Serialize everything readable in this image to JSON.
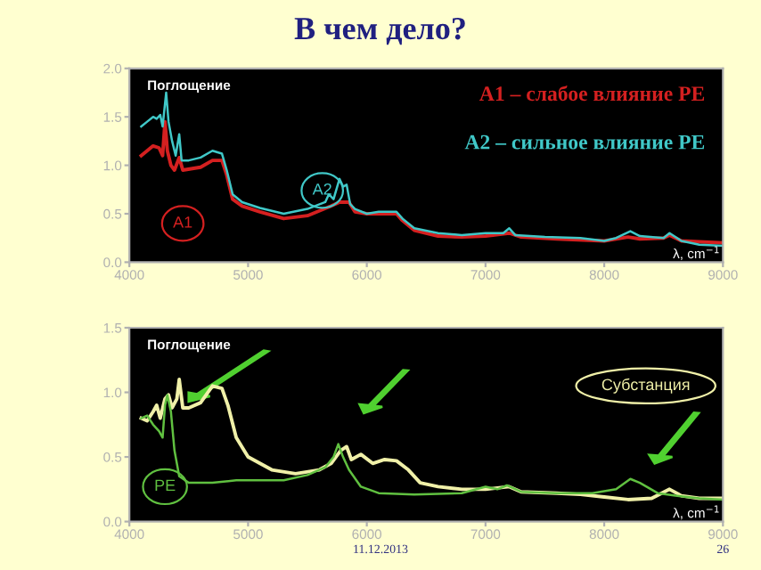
{
  "chart_data": [
    {
      "type": "line",
      "title": "В чем дело?",
      "ylabel": "Поглощение",
      "xlim": [
        4000,
        9000
      ],
      "xticks": [
        4000,
        5000,
        6000,
        7000,
        8000,
        9000
      ],
      "ylim": [
        0,
        2
      ],
      "yticks": [
        {
          "value": 0,
          "label": "0.0"
        },
        {
          "value": 0.5,
          "label": "0.5"
        },
        {
          "value": 1,
          "label": "1.0"
        },
        {
          "value": 1.5,
          "label": "1.5"
        },
        {
          "value": 2,
          "label": "2.0"
        }
      ],
      "xlabel": "λ, cm$^{−1}$",
      "grid": false,
      "legend": false,
      "marker": "none",
      "line_style": "solid",
      "annotations": [
        "A1 – слабое влияние PE",
        "A2 – сильное влияние PE"
      ],
      "series": [
        {
          "name": "A1",
          "color": "#d42020",
          "x": [
            4100,
            4150,
            4200,
            4250,
            4280,
            4300,
            4320,
            4350,
            4380,
            4420,
            4450,
            4600,
            4700,
            4780,
            4820,
            4870,
            4950,
            5100,
            5300,
            5500,
            5700,
            5770,
            5850,
            5900,
            6000,
            6100,
            6250,
            6300,
            6400,
            6600,
            6800,
            7000,
            7200,
            7300,
            7600,
            8000,
            8200,
            8300,
            8500,
            8550,
            8650,
            8800,
            9000
          ],
          "values": [
            1.1,
            1.15,
            1.2,
            1.18,
            1.1,
            1.45,
            1.15,
            1.0,
            0.95,
            1.08,
            0.95,
            0.98,
            1.05,
            1.05,
            0.9,
            0.65,
            0.58,
            0.52,
            0.45,
            0.48,
            0.58,
            0.62,
            0.62,
            0.52,
            0.5,
            0.5,
            0.5,
            0.43,
            0.33,
            0.27,
            0.26,
            0.27,
            0.3,
            0.26,
            0.24,
            0.22,
            0.26,
            0.24,
            0.25,
            0.28,
            0.22,
            0.21,
            0.2
          ]
        },
        {
          "name": "A2",
          "color": "#40c8c8",
          "x": [
            4100,
            4150,
            4200,
            4230,
            4260,
            4280,
            4310,
            4330,
            4360,
            4390,
            4420,
            4440,
            4500,
            4600,
            4700,
            4780,
            4820,
            4870,
            4950,
            5100,
            5300,
            5500,
            5650,
            5680,
            5720,
            5770,
            5800,
            5830,
            5860,
            5900,
            6000,
            6100,
            6250,
            6300,
            6400,
            6600,
            6800,
            7000,
            7150,
            7200,
            7250,
            7500,
            7800,
            8000,
            8100,
            8220,
            8300,
            8500,
            8550,
            8650,
            8800,
            9000
          ],
          "values": [
            1.4,
            1.45,
            1.5,
            1.48,
            1.52,
            1.4,
            1.75,
            1.45,
            1.25,
            1.1,
            1.32,
            1.05,
            1.05,
            1.08,
            1.15,
            1.12,
            0.95,
            0.7,
            0.62,
            0.56,
            0.5,
            0.55,
            0.62,
            0.7,
            0.65,
            0.86,
            0.78,
            0.8,
            0.6,
            0.55,
            0.5,
            0.52,
            0.52,
            0.45,
            0.35,
            0.3,
            0.28,
            0.3,
            0.3,
            0.35,
            0.28,
            0.26,
            0.25,
            0.22,
            0.25,
            0.32,
            0.27,
            0.25,
            0.3,
            0.22,
            0.18,
            0.17
          ]
        }
      ]
    },
    {
      "type": "line",
      "ylabel": "Поглощение",
      "xlabel": "λ, cm$^{−1}$",
      "xlim": [
        4000,
        9000
      ],
      "xticks": [
        4000,
        5000,
        6000,
        7000,
        8000,
        9000
      ],
      "ylim": [
        0,
        1.5
      ],
      "yticks": [
        {
          "value": 0,
          "label": "0.0"
        },
        {
          "value": 0.5,
          "label": "0.5"
        },
        {
          "value": 1,
          "label": "1.0"
        },
        {
          "value": 1.5,
          "label": "1.5"
        }
      ],
      "grid": false,
      "legend": false,
      "marker": "none",
      "line_style": "solid",
      "annotations": [
        "11.12.2013",
        "26"
      ],
      "series": [
        {
          "name": "Субстанция",
          "color": "#f0f0a8",
          "x": [
            4100,
            4150,
            4200,
            4230,
            4260,
            4300,
            4330,
            4360,
            4400,
            4420,
            4450,
            4500,
            4600,
            4700,
            4780,
            4830,
            4900,
            5000,
            5200,
            5400,
            5600,
            5700,
            5780,
            5830,
            5870,
            5950,
            6050,
            6150,
            6250,
            6350,
            6450,
            6600,
            6800,
            7000,
            7200,
            7300,
            7600,
            7800,
            8000,
            8200,
            8400,
            8550,
            8650,
            8800,
            9000
          ],
          "values": [
            0.8,
            0.78,
            0.85,
            0.9,
            0.8,
            0.95,
            0.98,
            0.88,
            0.95,
            1.1,
            0.88,
            0.88,
            0.92,
            1.05,
            1.03,
            0.9,
            0.65,
            0.5,
            0.4,
            0.37,
            0.4,
            0.45,
            0.55,
            0.58,
            0.48,
            0.52,
            0.45,
            0.48,
            0.47,
            0.4,
            0.3,
            0.27,
            0.25,
            0.25,
            0.27,
            0.23,
            0.22,
            0.21,
            0.19,
            0.17,
            0.18,
            0.25,
            0.2,
            0.18,
            0.18
          ]
        },
        {
          "name": "PE",
          "color": "#60c040",
          "x": [
            4100,
            4150,
            4200,
            4250,
            4280,
            4300,
            4320,
            4350,
            4380,
            4420,
            4500,
            4700,
            4900,
            5100,
            5300,
            5500,
            5650,
            5720,
            5760,
            5800,
            5850,
            5950,
            6100,
            6400,
            6800,
            7000,
            7100,
            7180,
            7300,
            7600,
            7900,
            8100,
            8220,
            8300,
            8450,
            8600,
            8800,
            9000
          ],
          "values": [
            0.8,
            0.82,
            0.75,
            0.7,
            0.65,
            0.9,
            0.98,
            0.85,
            0.55,
            0.35,
            0.3,
            0.3,
            0.32,
            0.32,
            0.32,
            0.36,
            0.42,
            0.5,
            0.6,
            0.5,
            0.4,
            0.27,
            0.22,
            0.21,
            0.22,
            0.27,
            0.25,
            0.28,
            0.23,
            0.22,
            0.22,
            0.25,
            0.33,
            0.3,
            0.22,
            0.2,
            0.18,
            0.17
          ]
        }
      ]
    }
  ]
}
